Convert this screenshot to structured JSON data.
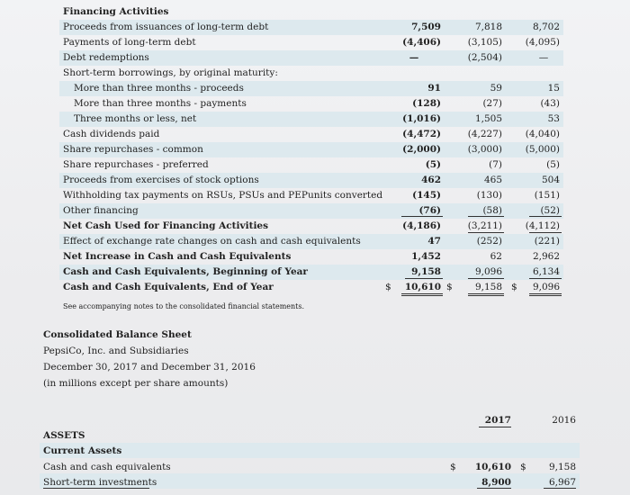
{
  "financing": {
    "title": "Financing Activities",
    "rows": [
      {
        "label": "Proceeds from issuances of long-term debt",
        "c1": "7,509",
        "c2": "7,818",
        "c3": "8,702"
      },
      {
        "label": "Payments of long-term debt",
        "c1": "(4,406)",
        "c2": "(3,105)",
        "c3": "(4,095)"
      },
      {
        "label": "Debt redemptions",
        "c1": "—",
        "c2": "(2,504)",
        "c3": "—"
      },
      {
        "label": "Short-term borrowings, by original maturity:",
        "c1": "",
        "c2": "",
        "c3": ""
      },
      {
        "label": "More than three months - proceeds",
        "c1": "91",
        "c2": "59",
        "c3": "15"
      },
      {
        "label": "More than three months - payments",
        "c1": "(128)",
        "c2": "(27)",
        "c3": "(43)"
      },
      {
        "label": "Three months or less, net",
        "c1": "(1,016)",
        "c2": "1,505",
        "c3": "53"
      },
      {
        "label": "Cash dividends paid",
        "c1": "(4,472)",
        "c2": "(4,227)",
        "c3": "(4,040)"
      },
      {
        "label": "Share repurchases - common",
        "c1": "(2,000)",
        "c2": "(3,000)",
        "c3": "(5,000)"
      },
      {
        "label": "Share repurchases - preferred",
        "c1": "(5)",
        "c2": "(7)",
        "c3": "(5)"
      },
      {
        "label": "Proceeds from exercises of stock options",
        "c1": "462",
        "c2": "465",
        "c3": "504"
      },
      {
        "label": "Withholding tax payments on RSUs, PSUs and PEPunits converted",
        "c1": "(145)",
        "c2": "(130)",
        "c3": "(151)"
      },
      {
        "label": "Other financing",
        "c1": "(76)",
        "c2": "(58)",
        "c3": "(52)"
      },
      {
        "label": "Net Cash Used for Financing Activities",
        "c1": "(4,186)",
        "c2": "(3,211)",
        "c3": "(4,112)"
      },
      {
        "label": "Effect of exchange rate changes on cash and cash equivalents",
        "c1": "47",
        "c2": "(252)",
        "c3": "(221)"
      },
      {
        "label": "Net Increase in Cash and Cash Equivalents",
        "c1": "1,452",
        "c2": "62",
        "c3": "2,962"
      },
      {
        "label": "Cash and Cash Equivalents, Beginning of Year",
        "c1": "9,158",
        "c2": "9,096",
        "c3": "6,134"
      },
      {
        "label": "Cash and Cash Equivalents, End of Year",
        "c1": "10,610",
        "c2": "9,158",
        "c3": "9,096"
      }
    ],
    "currency_symbol": "$",
    "note": "See accompanying notes to the consolidated financial statements."
  },
  "balance_sheet": {
    "title": "Consolidated Balance Sheet",
    "company": "PepsiCo, Inc. and Subsidiaries",
    "dates": "December 30, 2017 and December 31, 2016",
    "units": "(in millions except per share amounts)",
    "year_current": "2017",
    "year_prior": "2016",
    "assets_label": "ASSETS",
    "current_assets_label": "Current Assets",
    "rows": [
      {
        "label": "Cash and cash equivalents",
        "c_current": "10,610",
        "c_prior": "9,158"
      },
      {
        "label": "Short-term investments",
        "c_current": "8,900",
        "c_prior": "6,967"
      }
    ]
  }
}
